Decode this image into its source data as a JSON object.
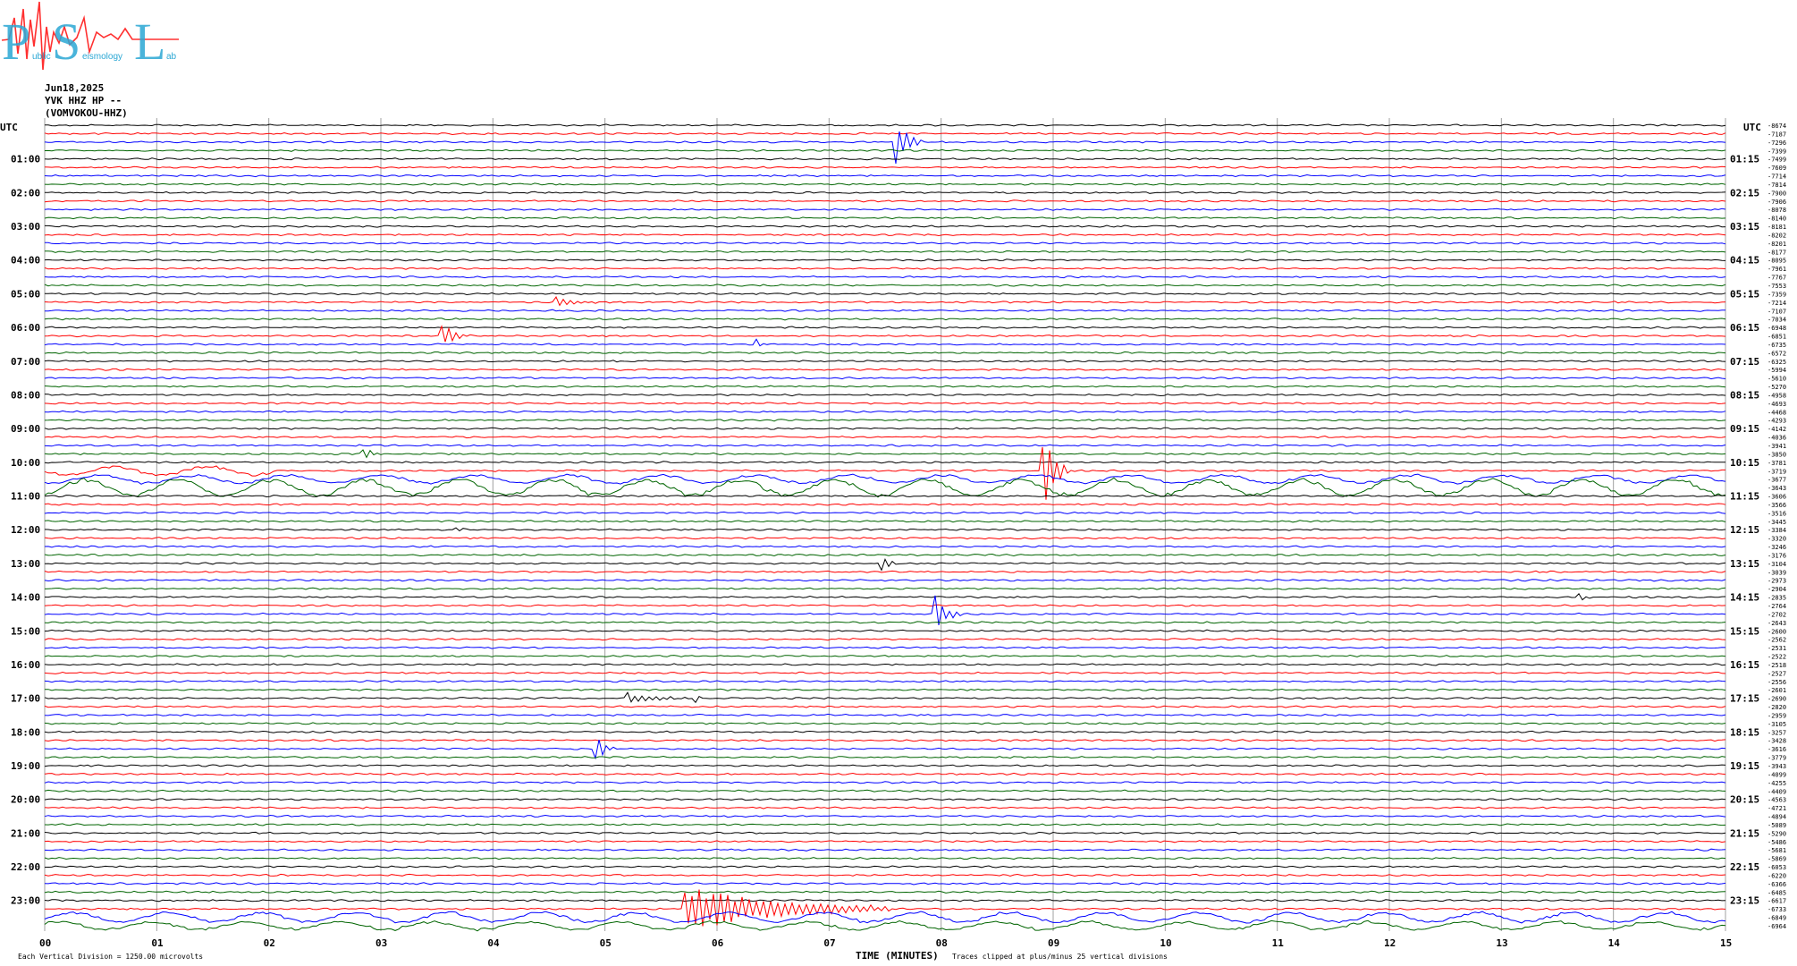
{
  "logo": {
    "letters": [
      "P",
      "S",
      "L"
    ],
    "small_text": [
      "ublic",
      "eismology",
      "ab"
    ]
  },
  "header": {
    "date": "Jun18,2025",
    "station": "YVK HHZ HP --",
    "name": "(VOMVOKOU-HHZ)"
  },
  "colors": {
    "cycle": [
      "#000000",
      "#ff0000",
      "#0000ff",
      "#006400"
    ],
    "grid": "#a0a0a0"
  },
  "chart_data": {
    "type": "line",
    "title": "",
    "xlabel": "TIME (MINUTES)",
    "xlim": [
      0,
      15
    ],
    "x_ticks": [
      "00",
      "01",
      "02",
      "03",
      "04",
      "05",
      "06",
      "07",
      "08",
      "09",
      "10",
      "11",
      "12",
      "13",
      "14",
      "15"
    ],
    "left_axis_label": "UTC",
    "right_axis_label": "UTC",
    "left_time_labels": [
      "01:00",
      "02:00",
      "03:00",
      "04:00",
      "05:00",
      "06:00",
      "07:00",
      "08:00",
      "09:00",
      "10:00",
      "11:00",
      "12:00",
      "13:00",
      "14:00",
      "15:00",
      "16:00",
      "17:00",
      "18:00",
      "19:00",
      "20:00",
      "21:00",
      "22:00",
      "23:00"
    ],
    "right_time_labels": [
      "01:15",
      "02:15",
      "03:15",
      "04:15",
      "05:15",
      "06:15",
      "07:15",
      "08:15",
      "09:15",
      "10:15",
      "11:15",
      "12:15",
      "13:15",
      "14:15",
      "15:15",
      "16:15",
      "17:15",
      "18:15",
      "19:15",
      "20:15",
      "21:15",
      "22:15",
      "23:15"
    ],
    "trace_offsets": [
      "-8674",
      "-7187",
      "-7296",
      "-7399",
      "-7499",
      "-7609",
      "-7714",
      "-7814",
      "-7900",
      "-7906",
      "-8078",
      "-8140",
      "-8181",
      "-8202",
      "-8201",
      "-8177",
      "-8095",
      "-7961",
      "-7767",
      "-7553",
      "-7359",
      "-7214",
      "-7107",
      "-7034",
      "-6948",
      "-6851",
      "-6735",
      "-6572",
      "-6325",
      "-5994",
      "-5610",
      "-5270",
      "-4958",
      "-4693",
      "-4468",
      "-4293",
      "-4142",
      "-4036",
      "-3941",
      "-3850",
      "-3781",
      "-3719",
      "-3677",
      "-3643",
      "-3606",
      "-3566",
      "-3516",
      "-3445",
      "-3384",
      "-3320",
      "-3246",
      "-3176",
      "-3104",
      "-3039",
      "-2973",
      "-2904",
      "-2835",
      "-2764",
      "-2702",
      "-2643",
      "-2600",
      "-2562",
      "-2531",
      "-2522",
      "-2518",
      "-2527",
      "-2556",
      "-2601",
      "-2690",
      "-2820",
      "-2959",
      "-3105",
      "-3257",
      "-3428",
      "-3616",
      "-3779",
      "-3943",
      "-4099",
      "-4255",
      "-4409",
      "-4563",
      "-4721",
      "-4894",
      "-5089",
      "-5290",
      "-5486",
      "-5681",
      "-5869",
      "-6053",
      "-6220",
      "-6366",
      "-6485",
      "-6617",
      "-6733",
      "-6849",
      "-6964"
    ],
    "events": [
      {
        "trace": 2,
        "minute": 7.58,
        "amplitude": 3.0,
        "duration": 0.2
      },
      {
        "trace": 21,
        "minute": 4.55,
        "amplitude": 0.6,
        "duration": 0.35
      },
      {
        "trace": 25,
        "minute": 3.55,
        "amplitude": 1.4,
        "duration": 0.2
      },
      {
        "trace": 26,
        "minute": 6.35,
        "amplitude": 0.8,
        "duration": 0.05
      },
      {
        "trace": 39,
        "minute": 2.85,
        "amplitude": 0.8,
        "duration": 0.15
      },
      {
        "trace": 41,
        "minute": 8.9,
        "amplitude": 4.5,
        "duration": 0.2
      },
      {
        "trace": 48,
        "minute": 3.65,
        "amplitude": 0.7,
        "duration": 0.05
      },
      {
        "trace": 52,
        "minute": 7.45,
        "amplitude": 1.8,
        "duration": 0.12
      },
      {
        "trace": 56,
        "minute": 13.7,
        "amplitude": 0.6,
        "duration": 0.05
      },
      {
        "trace": 58,
        "minute": 7.95,
        "amplitude": 2.0,
        "duration": 0.2
      },
      {
        "trace": 68,
        "minute": 5.2,
        "amplitude": 0.6,
        "duration": 0.5
      },
      {
        "trace": 68,
        "minute": 5.8,
        "amplitude": 0.8,
        "duration": 0.05
      },
      {
        "trace": 74,
        "minute": 4.92,
        "amplitude": 1.3,
        "duration": 0.15
      },
      {
        "trace": 93,
        "minute": 5.7,
        "amplitude": 2.5,
        "duration": 1.8
      }
    ],
    "noisy_traces": [
      {
        "trace": 41,
        "from": 0,
        "to": 2.1,
        "amplitude": 0.5
      },
      {
        "trace": 42,
        "from": 0,
        "to": 15,
        "amplitude": 0.45
      },
      {
        "trace": 43,
        "from": 0,
        "to": 15,
        "amplitude": 0.9
      },
      {
        "trace": 94,
        "from": 0,
        "to": 15,
        "amplitude": 0.55
      },
      {
        "trace": 95,
        "from": 0,
        "to": 15,
        "amplitude": 0.45
      }
    ],
    "footer_left": "Each Vertical Division = 1250.00 microvolts",
    "footer_right": "Traces clipped at plus/minus 25 vertical divisions"
  }
}
